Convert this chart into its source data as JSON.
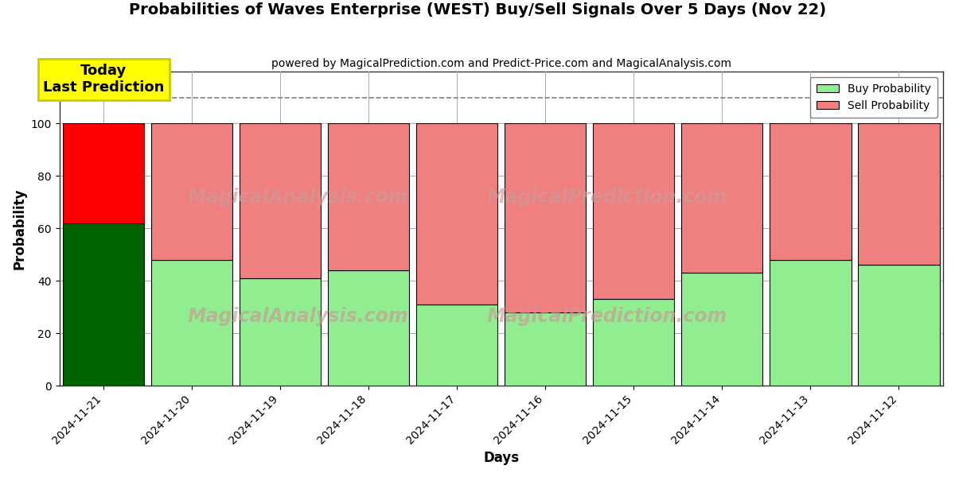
{
  "title": "Probabilities of Waves Enterprise (WEST) Buy/Sell Signals Over 5 Days (Nov 22)",
  "subtitle": "powered by MagicalPrediction.com and Predict-Price.com and MagicalAnalysis.com",
  "xlabel": "Days",
  "ylabel": "Probability",
  "dates": [
    "2024-11-21",
    "2024-11-20",
    "2024-11-19",
    "2024-11-18",
    "2024-11-17",
    "2024-11-16",
    "2024-11-15",
    "2024-11-14",
    "2024-11-13",
    "2024-11-12"
  ],
  "buy_probs": [
    62,
    48,
    41,
    44,
    31,
    28,
    33,
    43,
    48,
    46
  ],
  "sell_probs": [
    38,
    52,
    59,
    56,
    69,
    72,
    67,
    57,
    52,
    54
  ],
  "today_buy_color": "#006400",
  "today_sell_color": "#FF0000",
  "buy_color": "#90EE90",
  "sell_color": "#F08080",
  "today_annotation": "Today\nLast Prediction",
  "annotation_bg_color": "#FFFF00",
  "dashed_line_y": 110,
  "ylim": [
    0,
    120
  ],
  "yticks": [
    0,
    20,
    40,
    60,
    80,
    100
  ],
  "grid_color": "#aaaaaa",
  "bar_edge_color": "#000000",
  "bar_width": 0.92,
  "watermark_color": "#cc9999",
  "figsize": [
    12.0,
    6.0
  ],
  "dpi": 100
}
